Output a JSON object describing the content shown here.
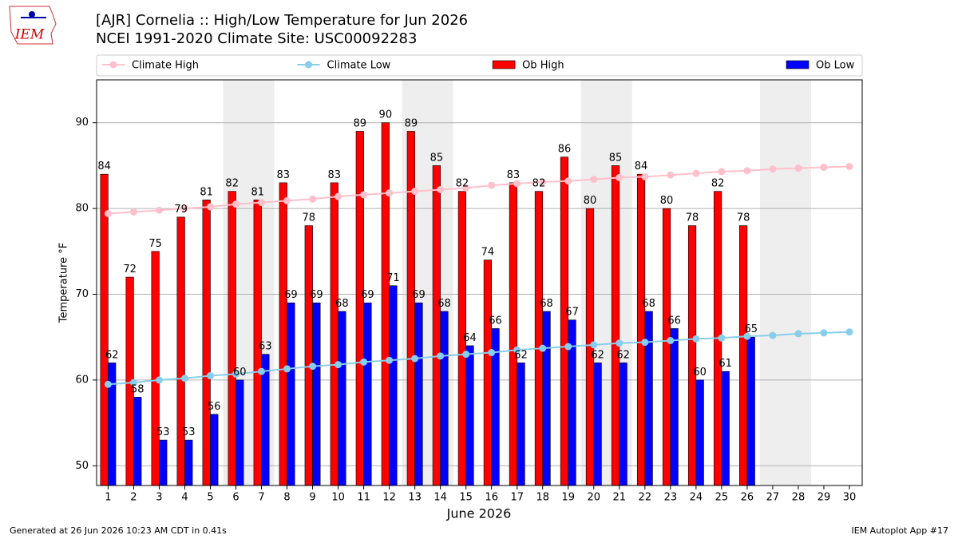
{
  "chart_data": {
    "type": "bar",
    "title": "[AJR] Cornelia :: High/Low Temperature for Jun 2026",
    "subtitle": "NCEI 1991-2020 Climate Site: USC00092283",
    "logo_text": "IEM",
    "footer_left": "Generated at 26 Jun 2026 10:23 AM CDT in 0.41s",
    "footer_right": "IEM Autoplot App #17",
    "xlabel": "June 2026",
    "ylabel": "Temperature °F",
    "x": [
      1,
      2,
      3,
      4,
      5,
      6,
      7,
      8,
      9,
      10,
      11,
      12,
      13,
      14,
      15,
      16,
      17,
      18,
      19,
      20,
      21,
      22,
      23,
      24,
      25,
      26,
      27,
      28,
      29,
      30
    ],
    "xlim": [
      0.55,
      30.5
    ],
    "xticks": [
      1,
      2,
      3,
      4,
      5,
      6,
      7,
      8,
      9,
      10,
      11,
      12,
      13,
      14,
      15,
      16,
      17,
      18,
      19,
      20,
      21,
      22,
      23,
      24,
      25,
      26,
      27,
      28,
      29,
      30
    ],
    "ylim": [
      47.7,
      95.0
    ],
    "yticks": [
      50,
      60,
      70,
      80,
      90
    ],
    "grid": true,
    "legend": "top",
    "shaded_spans": [
      [
        5.5,
        7.5
      ],
      [
        12.5,
        14.5
      ],
      [
        19.5,
        21.5
      ],
      [
        26.5,
        28.5
      ]
    ],
    "shade_color": "#eeeeee",
    "series": [
      {
        "name": "Climate High",
        "kind": "line",
        "color": "#ffc0cb",
        "values": [
          79.4,
          79.6,
          79.8,
          80.0,
          80.2,
          80.5,
          80.7,
          80.9,
          81.1,
          81.4,
          81.6,
          81.8,
          82.0,
          82.2,
          82.4,
          82.7,
          82.9,
          83.1,
          83.2,
          83.4,
          83.6,
          83.7,
          83.9,
          84.1,
          84.3,
          84.4,
          84.6,
          84.7,
          84.8,
          84.9
        ]
      },
      {
        "name": "Climate Low",
        "kind": "line",
        "color": "#87ceeb",
        "values": [
          59.5,
          59.7,
          60.0,
          60.2,
          60.5,
          60.7,
          61.0,
          61.3,
          61.6,
          61.8,
          62.1,
          62.3,
          62.5,
          62.8,
          63.0,
          63.2,
          63.5,
          63.7,
          63.9,
          64.1,
          64.3,
          64.4,
          64.6,
          64.8,
          64.9,
          65.1,
          65.2,
          65.4,
          65.5,
          65.6
        ]
      },
      {
        "name": "Ob High",
        "kind": "bar",
        "color": "#ff0000",
        "offset": -0.15,
        "values": [
          84,
          72,
          75,
          79,
          81,
          82,
          81,
          83,
          78,
          83,
          89,
          90,
          89,
          85,
          82,
          74,
          83,
          82,
          86,
          80,
          85,
          84,
          80,
          78,
          82,
          78,
          null,
          null,
          null,
          null
        ]
      },
      {
        "name": "Ob Low",
        "kind": "bar",
        "color": "#0000ff",
        "offset": 0.15,
        "values": [
          62,
          58,
          53,
          53,
          56,
          60,
          63,
          69,
          69,
          68,
          69,
          71,
          69,
          68,
          64,
          66,
          62,
          68,
          67,
          62,
          62,
          68,
          66,
          60,
          61,
          65,
          null,
          null,
          null,
          null
        ]
      }
    ]
  }
}
